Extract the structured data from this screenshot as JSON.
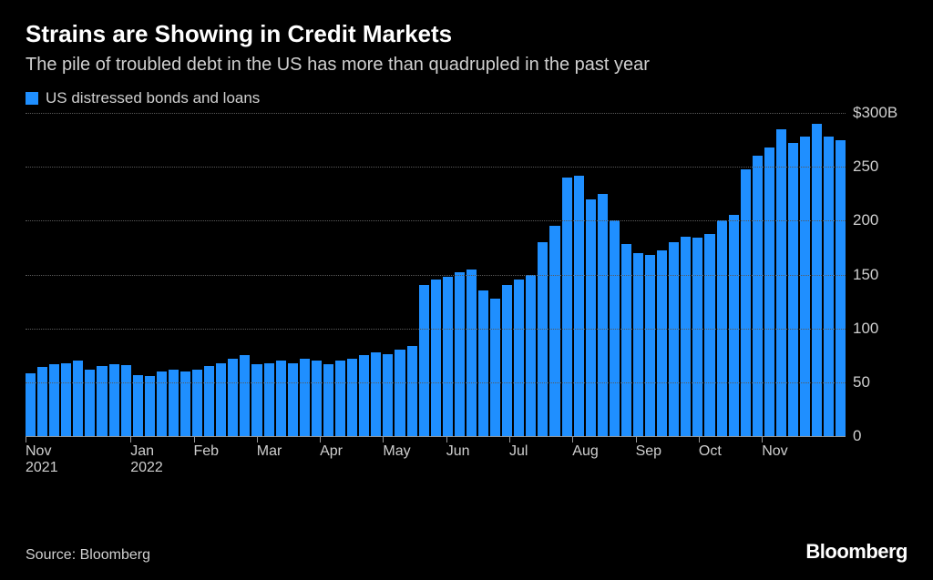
{
  "header": {
    "title": "Strains are Showing in Credit Markets",
    "subtitle": "The pile of troubled debt in the US has more than quadrupled in the past year"
  },
  "legend": {
    "swatch_color": "#1f8fff",
    "label": "US distressed bonds and loans"
  },
  "chart": {
    "type": "bar",
    "background_color": "#000000",
    "bar_color": "#1f8fff",
    "grid_color": "#5a5a5a",
    "axis_color": "#999999",
    "text_color": "#cfcfcf",
    "ylim": [
      0,
      300
    ],
    "ytick_step": 50,
    "ytick_labels": [
      "0",
      "50",
      "100",
      "150",
      "200",
      "250",
      "$300B"
    ],
    "values": [
      58,
      64,
      67,
      68,
      70,
      62,
      65,
      67,
      66,
      57,
      56,
      60,
      62,
      60,
      62,
      65,
      68,
      72,
      75,
      67,
      68,
      70,
      68,
      72,
      70,
      67,
      70,
      72,
      75,
      78,
      76,
      80,
      84,
      140,
      145,
      148,
      152,
      155,
      135,
      128,
      140,
      145,
      150,
      180,
      195,
      240,
      242,
      220,
      225,
      200,
      178,
      170,
      168,
      172,
      180,
      185,
      184,
      188,
      200,
      205,
      248,
      260,
      268,
      285,
      272,
      278,
      290,
      278,
      275
    ],
    "x_ticks": [
      {
        "pos": 0.0,
        "label": "Nov\n2021"
      },
      {
        "pos": 0.128,
        "label": "Jan\n2022"
      },
      {
        "pos": 0.205,
        "label": "Feb"
      },
      {
        "pos": 0.282,
        "label": "Mar"
      },
      {
        "pos": 0.359,
        "label": "Apr"
      },
      {
        "pos": 0.436,
        "label": "May"
      },
      {
        "pos": 0.513,
        "label": "Jun"
      },
      {
        "pos": 0.59,
        "label": "Jul"
      },
      {
        "pos": 0.667,
        "label": "Aug"
      },
      {
        "pos": 0.744,
        "label": "Sep"
      },
      {
        "pos": 0.821,
        "label": "Oct"
      },
      {
        "pos": 0.898,
        "label": "Nov"
      }
    ]
  },
  "footer": {
    "source": "Source: Bloomberg",
    "brand": "Bloomberg"
  }
}
